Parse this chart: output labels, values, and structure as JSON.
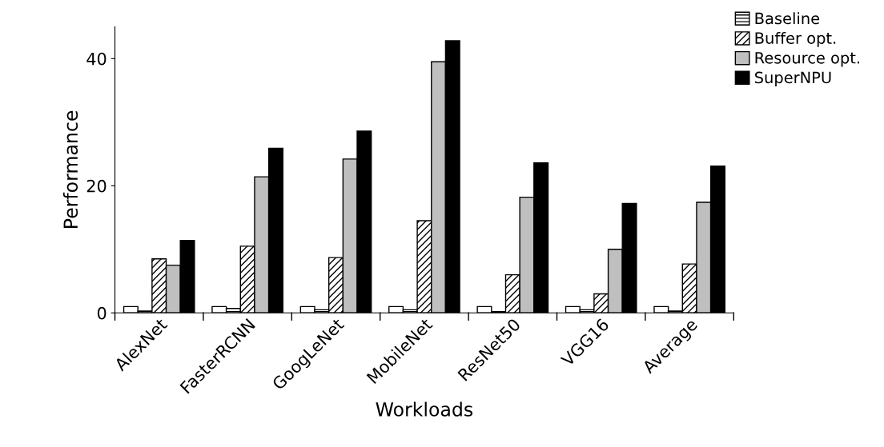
{
  "chart_data": {
    "type": "bar",
    "xlabel": "Workloads",
    "ylabel": "Performance",
    "categories": [
      "AlexNet",
      "FasterRCNN",
      "GoogLeNet",
      "MobileNet",
      "ResNet50",
      "VGG16",
      "Average"
    ],
    "series": [
      {
        "color": "#ffffff",
        "values": [
          1,
          1,
          1,
          1,
          1,
          1,
          1
        ]
      },
      {
        "name": "Baseline",
        "color": "#000000",
        "values": [
          0.3,
          0.7,
          0.5,
          0.5,
          0.2,
          0.5,
          0.3
        ]
      },
      {
        "name": "Buffer opt.",
        "color": "#000000",
        "values": [
          8.5,
          10.5,
          8.7,
          14.5,
          6.0,
          3.0,
          7.7
        ]
      },
      {
        "name": "Resource opt.",
        "color": "#bfbfbf",
        "values": [
          7.5,
          21.4,
          24.2,
          39.5,
          18.2,
          10.0,
          17.4
        ]
      },
      {
        "name": "SuperNPU",
        "color": "#000000",
        "values": [
          11.4,
          25.9,
          28.6,
          42.8,
          23.6,
          17.2,
          23.1
        ]
      }
    ],
    "ylim": [
      0,
      45
    ],
    "yticks": [
      0,
      20,
      40
    ],
    "grid": false,
    "legend": "top right"
  }
}
